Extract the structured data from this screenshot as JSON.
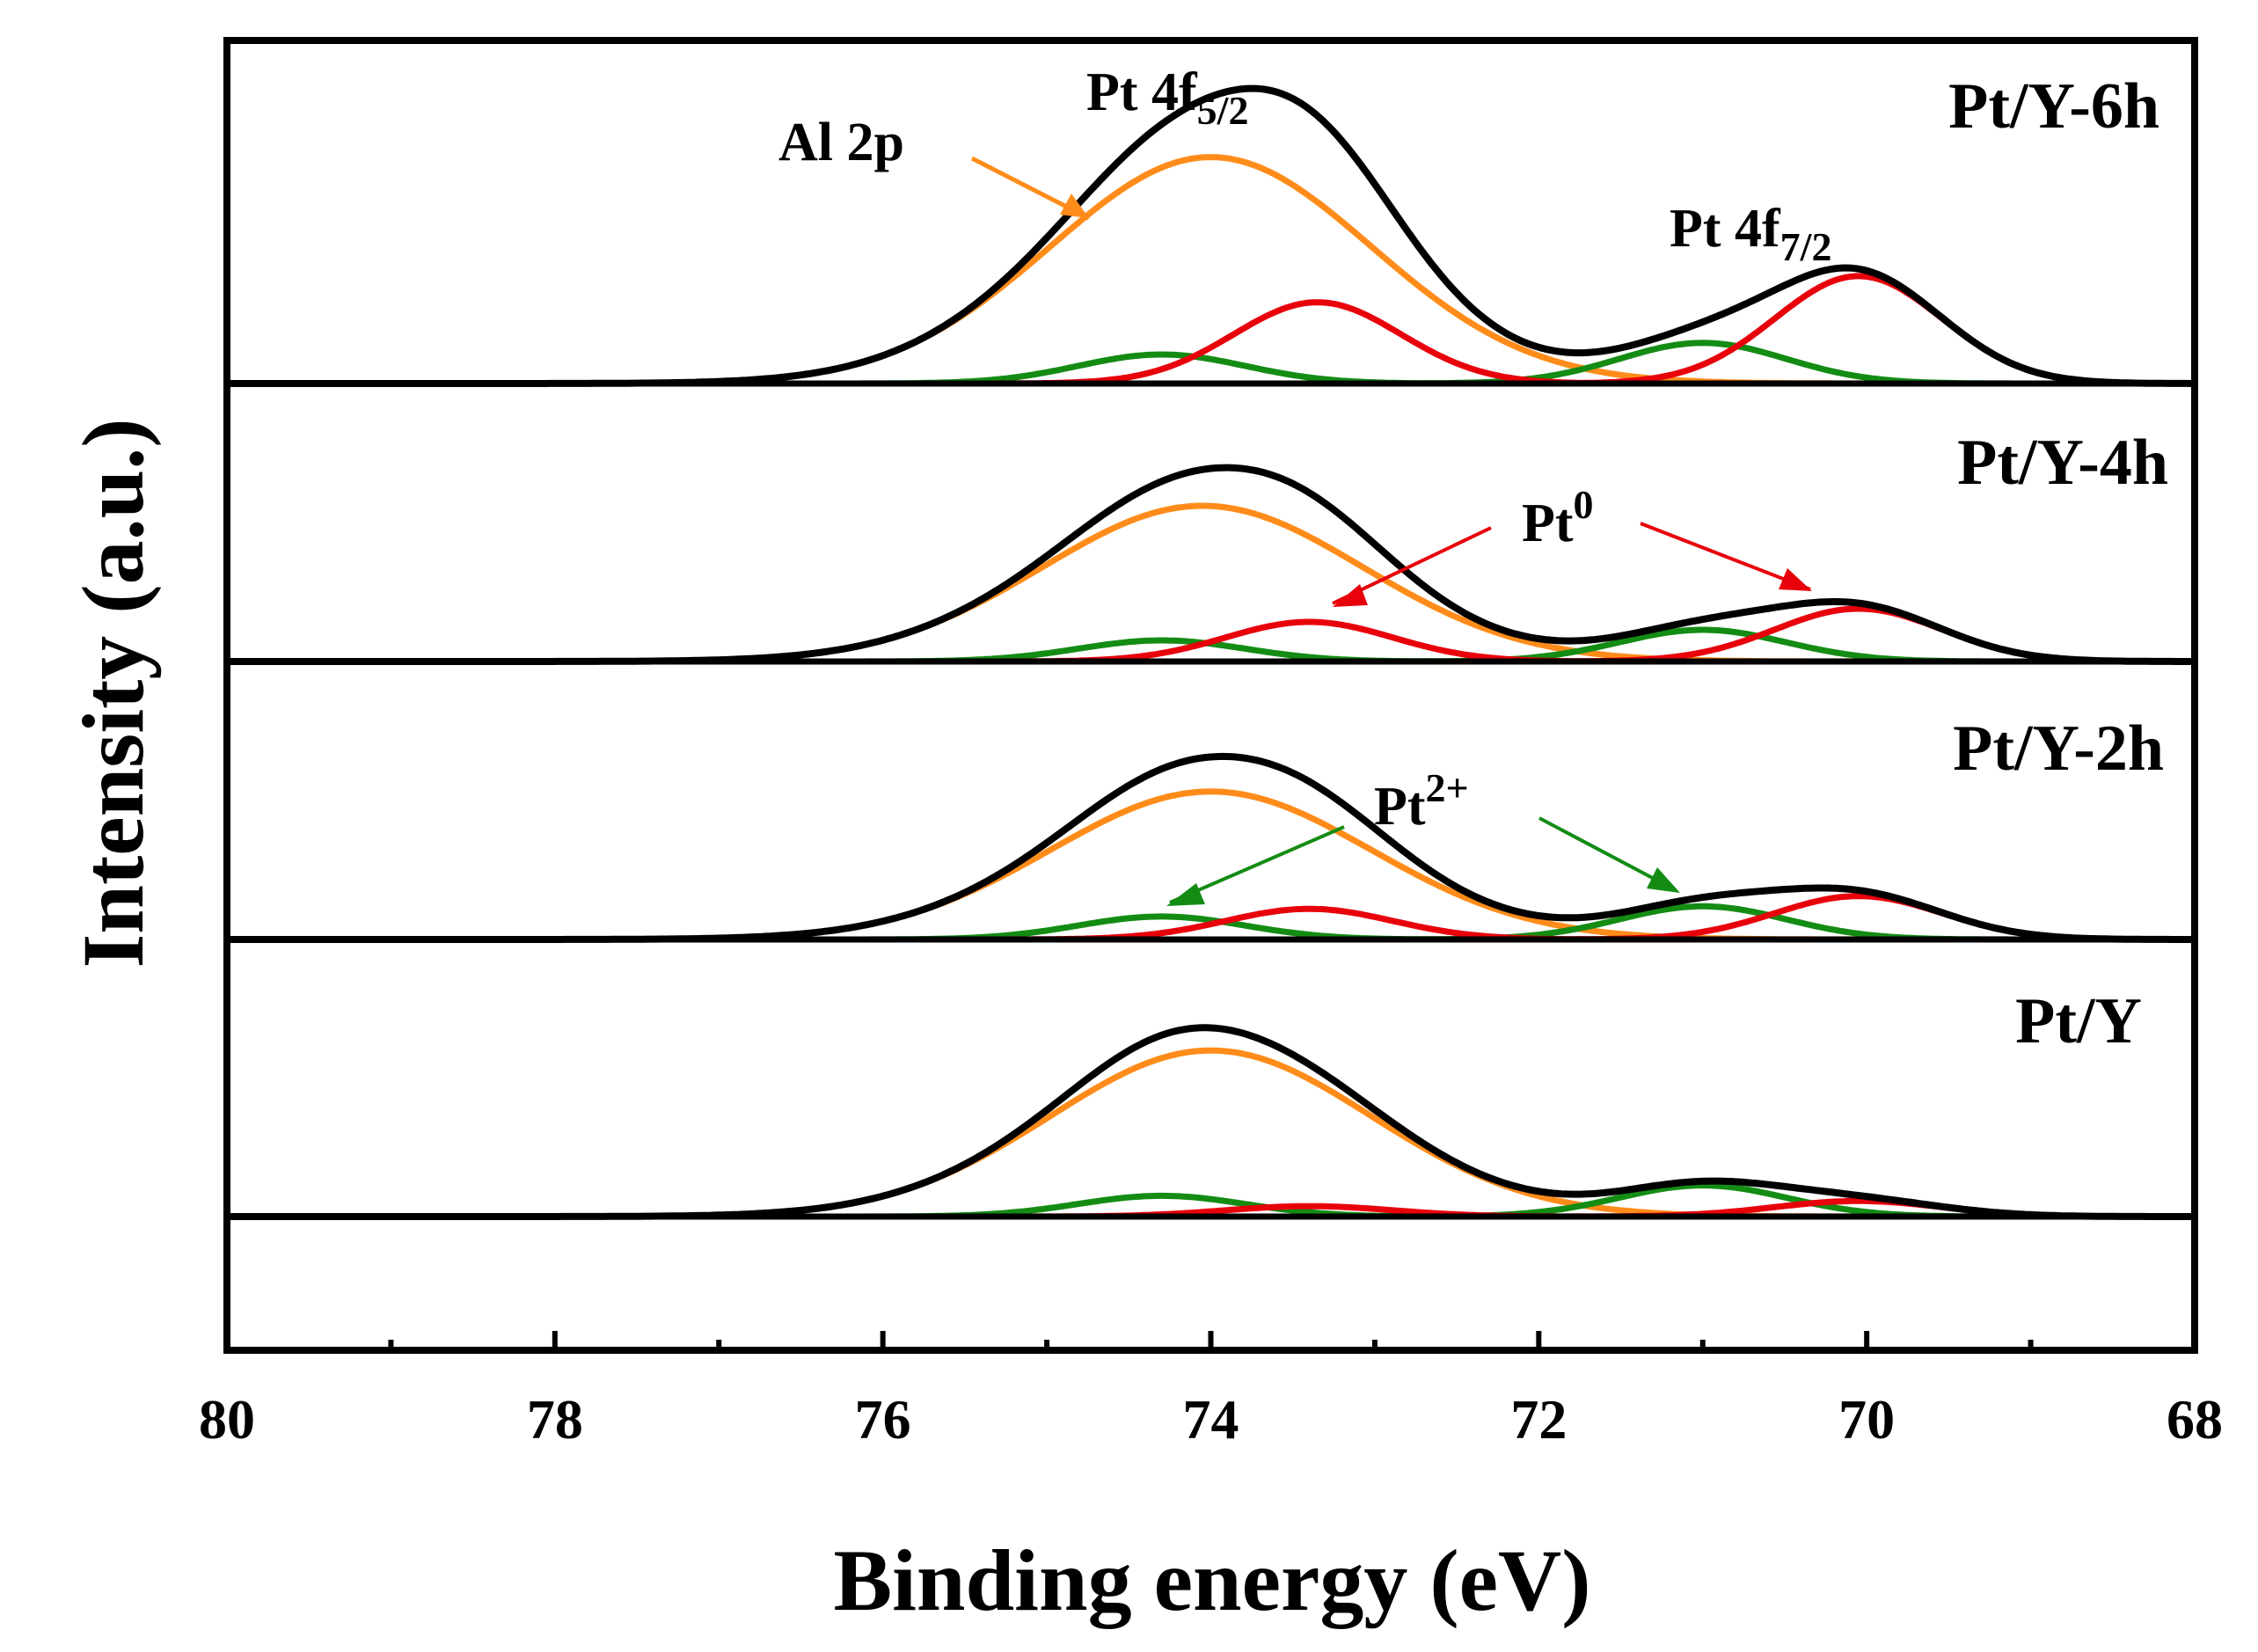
{
  "chart_data": {
    "type": "line",
    "xlabel": "Binding energy (eV)",
    "ylabel": "Intensity (a.u.)",
    "xlim": [
      80,
      68
    ],
    "x_ticks": [
      "80",
      "78",
      "76",
      "74",
      "72",
      "70",
      "68"
    ],
    "x_tick_values": [
      80,
      78,
      76,
      74,
      72,
      70,
      68
    ],
    "colors": {
      "envelope": "#000000",
      "al2p": "#ff8c1a",
      "pt0": "#e8000b",
      "pt2": "#148c14"
    },
    "panels": [
      {
        "label": "Pt/Y-6h",
        "components": [
          {
            "name": "Al 2p",
            "center": 74.0,
            "fwhm": 2.3,
            "height": 0.78,
            "color": "#ff8c1a"
          },
          {
            "name": "Pt0 4f5/2",
            "center": 73.35,
            "fwhm": 1.2,
            "height": 0.28,
            "color": "#e8000b"
          },
          {
            "name": "Pt0 4f7/2",
            "center": 70.05,
            "fwhm": 1.2,
            "height": 0.37,
            "color": "#e8000b"
          },
          {
            "name": "Pt2+ 4f5/2",
            "center": 74.3,
            "fwhm": 1.2,
            "height": 0.1,
            "color": "#148c14"
          },
          {
            "name": "Pt2+ 4f7/2",
            "center": 71.0,
            "fwhm": 1.2,
            "height": 0.14,
            "color": "#148c14"
          }
        ]
      },
      {
        "label": "Pt/Y-4h",
        "components": [
          {
            "name": "Al 2p",
            "center": 74.05,
            "fwhm": 2.3,
            "height": 0.59,
            "color": "#ff8c1a"
          },
          {
            "name": "Pt0 4f5/2",
            "center": 73.4,
            "fwhm": 1.2,
            "height": 0.15,
            "color": "#e8000b"
          },
          {
            "name": "Pt0 4f7/2",
            "center": 70.05,
            "fwhm": 1.2,
            "height": 0.2,
            "color": "#e8000b"
          },
          {
            "name": "Pt2+ 4f5/2",
            "center": 74.3,
            "fwhm": 1.2,
            "height": 0.08,
            "color": "#148c14"
          },
          {
            "name": "Pt2+ 4f7/2",
            "center": 71.0,
            "fwhm": 1.2,
            "height": 0.12,
            "color": "#148c14"
          }
        ]
      },
      {
        "label": "Pt/Y-2h",
        "components": [
          {
            "name": "Al 2p",
            "center": 74.0,
            "fwhm": 2.3,
            "height": 0.58,
            "color": "#ff8c1a"
          },
          {
            "name": "Pt0 4f5/2",
            "center": 73.4,
            "fwhm": 1.2,
            "height": 0.12,
            "color": "#e8000b"
          },
          {
            "name": "Pt0 4f7/2",
            "center": 70.05,
            "fwhm": 1.2,
            "height": 0.17,
            "color": "#e8000b"
          },
          {
            "name": "Pt2+ 4f5/2",
            "center": 74.3,
            "fwhm": 1.2,
            "height": 0.09,
            "color": "#148c14"
          },
          {
            "name": "Pt2+ 4f7/2",
            "center": 71.0,
            "fwhm": 1.2,
            "height": 0.13,
            "color": "#148c14"
          }
        ]
      },
      {
        "label": "Pt/Y",
        "components": [
          {
            "name": "Al 2p",
            "center": 74.0,
            "fwhm": 2.3,
            "height": 0.64,
            "color": "#ff8c1a"
          },
          {
            "name": "Pt0 4f5/2",
            "center": 73.4,
            "fwhm": 1.2,
            "height": 0.04,
            "color": "#e8000b"
          },
          {
            "name": "Pt0 4f7/2",
            "center": 70.05,
            "fwhm": 1.2,
            "height": 0.06,
            "color": "#e8000b"
          },
          {
            "name": "Pt2+ 4f5/2",
            "center": 74.3,
            "fwhm": 1.2,
            "height": 0.08,
            "color": "#148c14"
          },
          {
            "name": "Pt2+ 4f7/2",
            "center": 71.0,
            "fwhm": 1.2,
            "height": 0.12,
            "color": "#148c14"
          }
        ]
      }
    ],
    "annotations": {
      "al2p": "Al 2p",
      "pt4f52_main": "Pt 4f",
      "pt4f52_sub": "5/2",
      "pt4f72_main": "Pt 4f",
      "pt4f72_sub": "7/2",
      "pt0_main": "Pt",
      "pt0_sup": "0",
      "pt2_main": "Pt",
      "pt2_sup": "2+"
    }
  }
}
